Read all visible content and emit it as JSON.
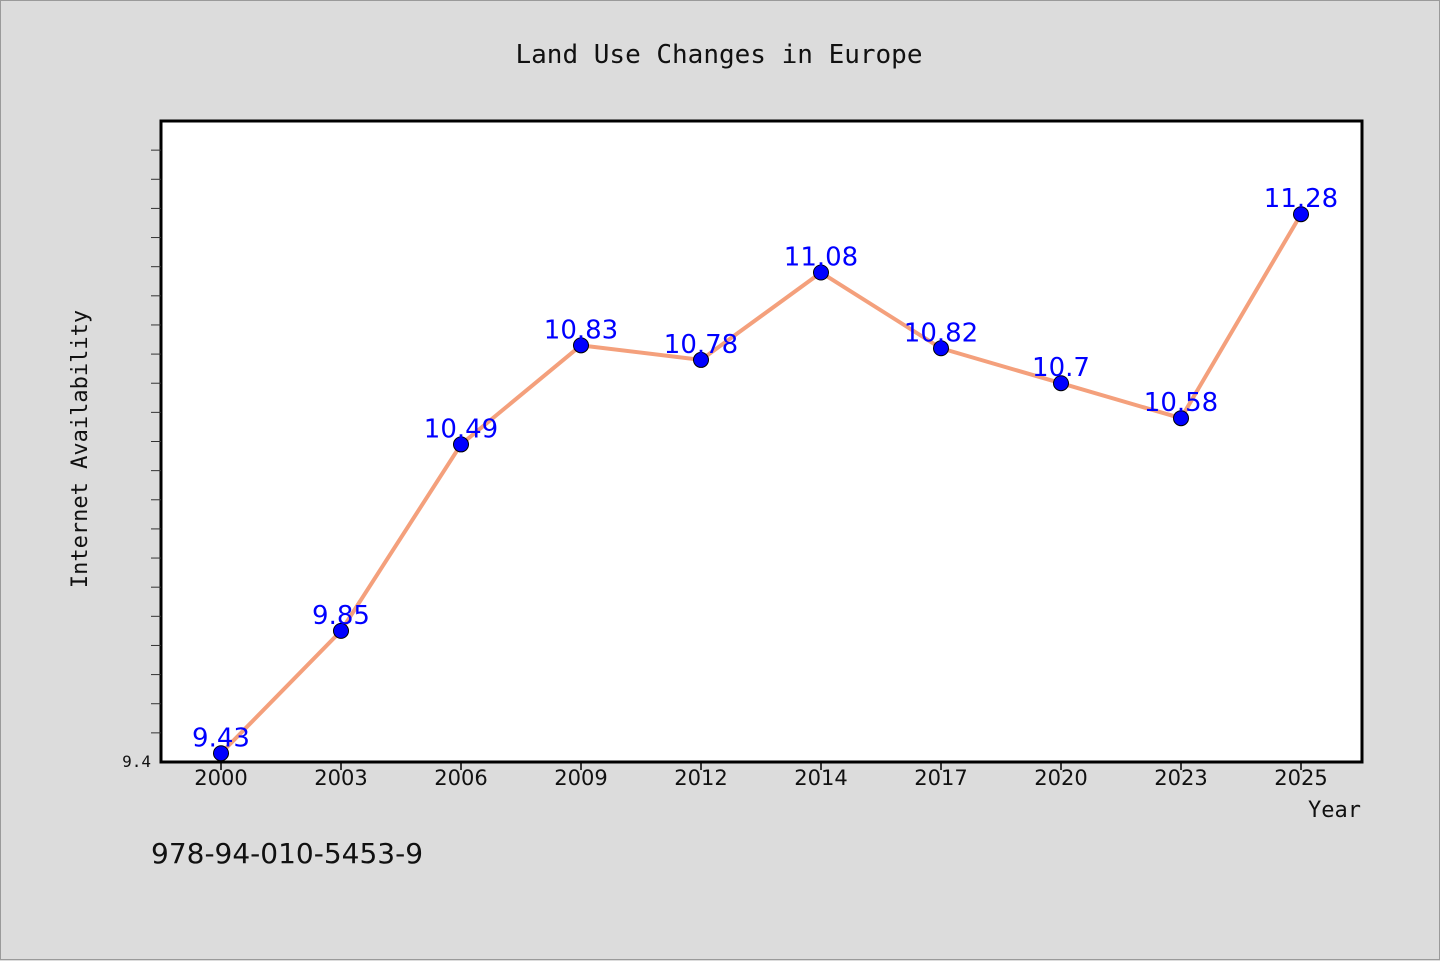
{
  "chart_data": {
    "type": "line",
    "title": "Land Use Changes in Europe",
    "xlabel": "Year",
    "ylabel": "Internet Availability",
    "categories": [
      "2000",
      "2003",
      "2006",
      "2009",
      "2012",
      "2014",
      "2017",
      "2020",
      "2023",
      "2025"
    ],
    "series": [
      {
        "values": [
          9.43,
          9.85,
          10.49,
          10.83,
          10.78,
          11.08,
          10.82,
          10.7,
          10.58,
          11.28
        ],
        "color": "#f4a07c",
        "marker_color": "#0000ff"
      }
    ],
    "data_labels": [
      "9.43",
      "9.85",
      "10.49",
      "10.83",
      "10.78",
      "11.08",
      "10.82",
      "10.7",
      "10.58",
      "11.28"
    ],
    "ylim": [
      9.4,
      11.6
    ],
    "ytick_labels": [
      "9.4"
    ],
    "grid": false,
    "legend": "none",
    "label_color": "#0000ff",
    "background_color": "#dcdcdc",
    "plot_background_color": "#ffffff"
  },
  "footnote": "978-94-010-5453-9"
}
